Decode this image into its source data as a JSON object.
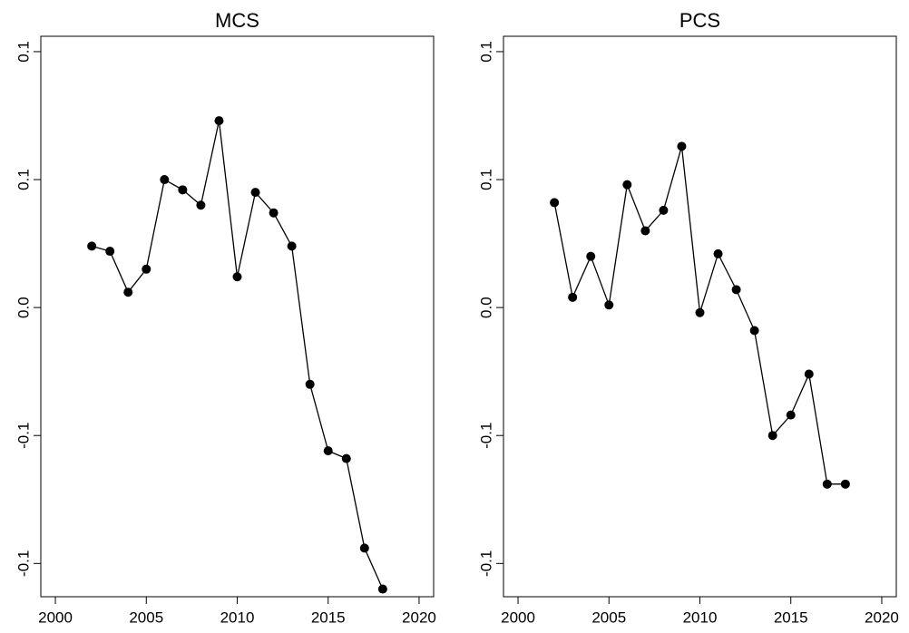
{
  "chart_data": [
    {
      "type": "line",
      "title": "MCS",
      "x": [
        2002,
        2003,
        2004,
        2005,
        2006,
        2007,
        2008,
        2009,
        2010,
        2011,
        2012,
        2013,
        2014,
        2015,
        2016,
        2017,
        2018
      ],
      "series": [
        {
          "color": "#000000",
          "values": [
            0.024,
            0.022,
            0.006,
            0.015,
            0.05,
            0.046,
            0.04,
            0.073,
            0.012,
            0.045,
            0.037,
            0.024,
            -0.03,
            -0.056,
            -0.059,
            -0.094,
            -0.11
          ]
        }
      ],
      "xlim": [
        1999.2,
        2020.8
      ],
      "xticks": [
        2000,
        2005,
        2010,
        2015,
        2020
      ],
      "ylim": [
        -0.113,
        0.106
      ],
      "yticks": [
        {
          "value": -0.1,
          "label": "-0.1"
        },
        {
          "value": -0.05,
          "label": "-0.1"
        },
        {
          "value": 0,
          "label": "0.0"
        },
        {
          "value": 0.05,
          "label": "0.1"
        },
        {
          "value": 0.1,
          "label": "0.1"
        }
      ]
    },
    {
      "type": "line",
      "title": "PCS",
      "x": [
        2002,
        2003,
        2004,
        2005,
        2006,
        2007,
        2008,
        2009,
        2010,
        2011,
        2012,
        2013,
        2014,
        2015,
        2016,
        2017,
        2018
      ],
      "series": [
        {
          "color": "#000000",
          "values": [
            0.041,
            0.004,
            0.02,
            0.001,
            0.048,
            0.03,
            0.038,
            0.063,
            -0.002,
            0.021,
            0.007,
            -0.009,
            -0.05,
            -0.042,
            -0.026,
            -0.069,
            -0.069
          ]
        }
      ],
      "xlim": [
        1999.2,
        2020.8
      ],
      "xticks": [
        2000,
        2005,
        2010,
        2015,
        2020
      ],
      "ylim": [
        -0.113,
        0.106
      ],
      "yticks": [
        {
          "value": -0.1,
          "label": "-0.1"
        },
        {
          "value": -0.05,
          "label": "-0.1"
        },
        {
          "value": 0,
          "label": "0.0"
        },
        {
          "value": 0.05,
          "label": "0.1"
        },
        {
          "value": 0.1,
          "label": "0.1"
        }
      ]
    }
  ]
}
